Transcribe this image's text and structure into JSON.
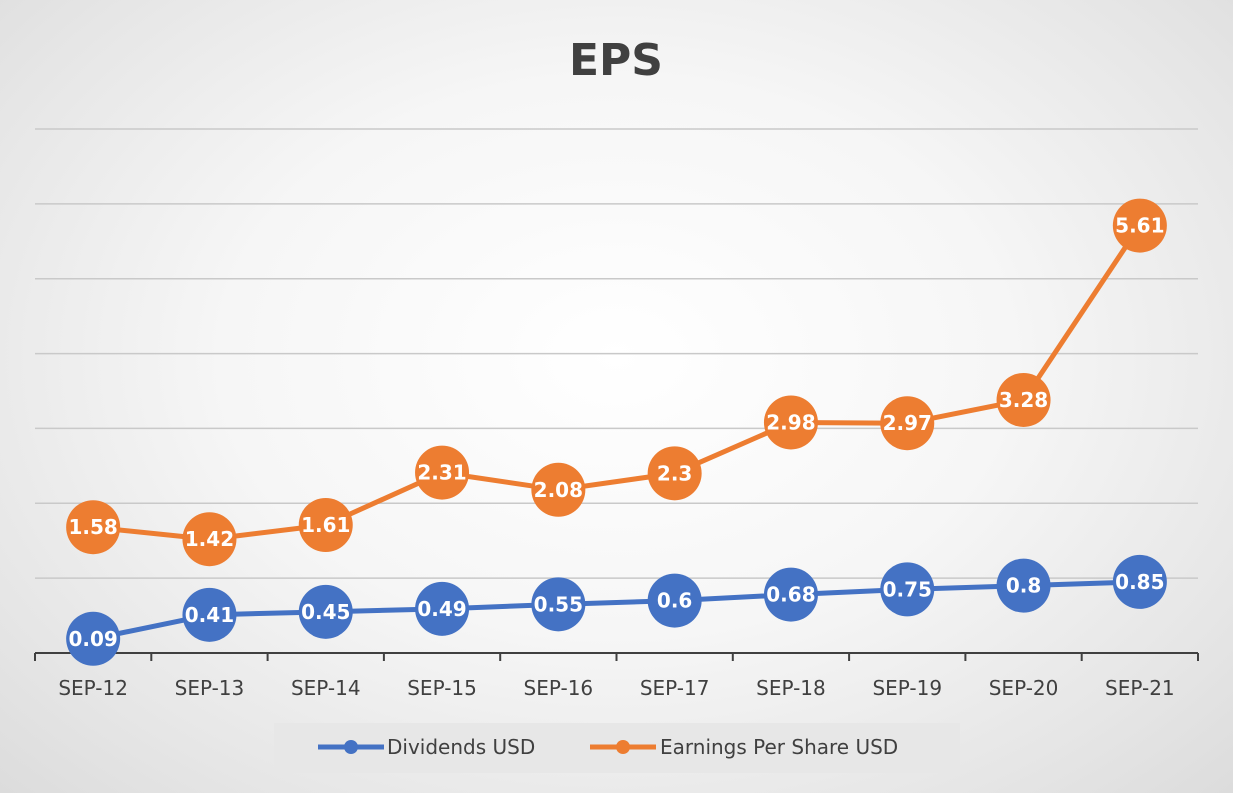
{
  "chart_data": {
    "type": "line",
    "title": "EPS",
    "xlabel": "",
    "ylabel": "",
    "categories": [
      "SEP-12",
      "SEP-13",
      "SEP-14",
      "SEP-15",
      "SEP-16",
      "SEP-17",
      "SEP-18",
      "SEP-19",
      "SEP-20",
      "SEP-21"
    ],
    "series": [
      {
        "name": "Dividends USD",
        "color": "#4472C4",
        "values": [
          0.09,
          0.41,
          0.45,
          0.49,
          0.55,
          0.6,
          0.68,
          0.75,
          0.8,
          0.85
        ],
        "labels": [
          "0.09",
          "0.41",
          "0.45",
          "0.49",
          "0.55",
          "0.6",
          "0.68",
          "0.75",
          "0.8",
          "0.85"
        ]
      },
      {
        "name": "Earnings Per Share USD",
        "color": "#ED7D31",
        "values": [
          1.58,
          1.42,
          1.61,
          2.31,
          2.08,
          2.3,
          2.98,
          2.97,
          3.28,
          5.61
        ],
        "labels": [
          "1.58",
          "1.42",
          "1.61",
          "2.31",
          "2.08",
          "2.3",
          "2.98",
          "2.97",
          "3.28",
          "5.61"
        ]
      }
    ],
    "ylim": [
      -0.1,
      6.9
    ],
    "gridlines": [
      0.9,
      1.9,
      2.9,
      3.9,
      4.9,
      5.9,
      6.9
    ],
    "grid": true,
    "y_axis_labels_shown": false,
    "legend": "bottom"
  }
}
